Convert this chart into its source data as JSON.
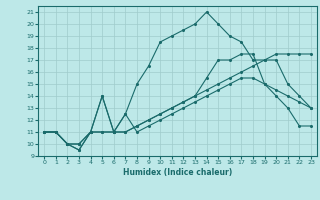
{
  "title": "",
  "xlabel": "Humidex (Indice chaleur)",
  "xlim": [
    -0.5,
    23.5
  ],
  "ylim": [
    9,
    21.5
  ],
  "xticks": [
    0,
    1,
    2,
    3,
    4,
    5,
    6,
    7,
    8,
    9,
    10,
    11,
    12,
    13,
    14,
    15,
    16,
    17,
    18,
    19,
    20,
    21,
    22,
    23
  ],
  "yticks": [
    9,
    10,
    11,
    12,
    13,
    14,
    15,
    16,
    17,
    18,
    19,
    20,
    21
  ],
  "background_color": "#bde8e8",
  "grid_color": "#a0cccc",
  "line_color": "#1a6b6b",
  "line1_x": [
    0,
    1,
    2,
    3,
    4,
    5,
    6,
    7,
    8,
    9,
    10,
    11,
    12,
    13,
    14,
    15,
    16,
    17,
    18,
    19,
    20,
    21,
    22,
    23
  ],
  "line1_y": [
    11,
    11,
    10,
    9.5,
    11,
    11,
    11,
    11,
    11.5,
    12,
    12.5,
    13,
    13.5,
    14,
    14.5,
    15,
    15.5,
    16,
    16.5,
    17,
    17.5,
    17.5,
    17.5,
    17.5
  ],
  "line2_x": [
    0,
    1,
    2,
    3,
    4,
    5,
    6,
    7,
    8,
    9,
    10,
    11,
    12,
    13,
    14,
    15,
    16,
    17,
    18,
    19,
    20,
    21,
    22,
    23
  ],
  "line2_y": [
    11,
    11,
    10,
    9.5,
    11,
    11,
    11,
    11,
    11.5,
    12,
    12.5,
    13,
    13.5,
    14,
    15.5,
    17,
    17,
    17.5,
    17.5,
    15,
    14,
    13,
    11.5,
    11.5
  ],
  "line3_x": [
    0,
    1,
    2,
    3,
    4,
    5,
    6,
    7,
    8,
    9,
    10,
    11,
    12,
    13,
    14,
    15,
    16,
    17,
    18,
    19,
    20,
    21,
    22,
    23
  ],
  "line3_y": [
    11,
    11,
    10,
    10,
    11,
    14,
    11,
    12.5,
    11,
    11.5,
    12,
    12.5,
    13,
    13.5,
    14,
    14.5,
    15,
    15.5,
    15.5,
    15,
    14.5,
    14,
    13.5,
    13
  ],
  "line4_x": [
    0,
    1,
    2,
    3,
    4,
    5,
    6,
    7,
    8,
    9,
    10,
    11,
    12,
    13,
    14,
    15,
    16,
    17,
    18,
    19,
    20,
    21,
    22,
    23
  ],
  "line4_y": [
    11,
    11,
    10,
    10,
    11,
    14,
    11,
    12.5,
    15,
    16.5,
    18.5,
    19,
    19.5,
    20,
    21,
    20,
    19,
    18.5,
    17,
    17,
    17,
    15,
    14,
    13
  ]
}
